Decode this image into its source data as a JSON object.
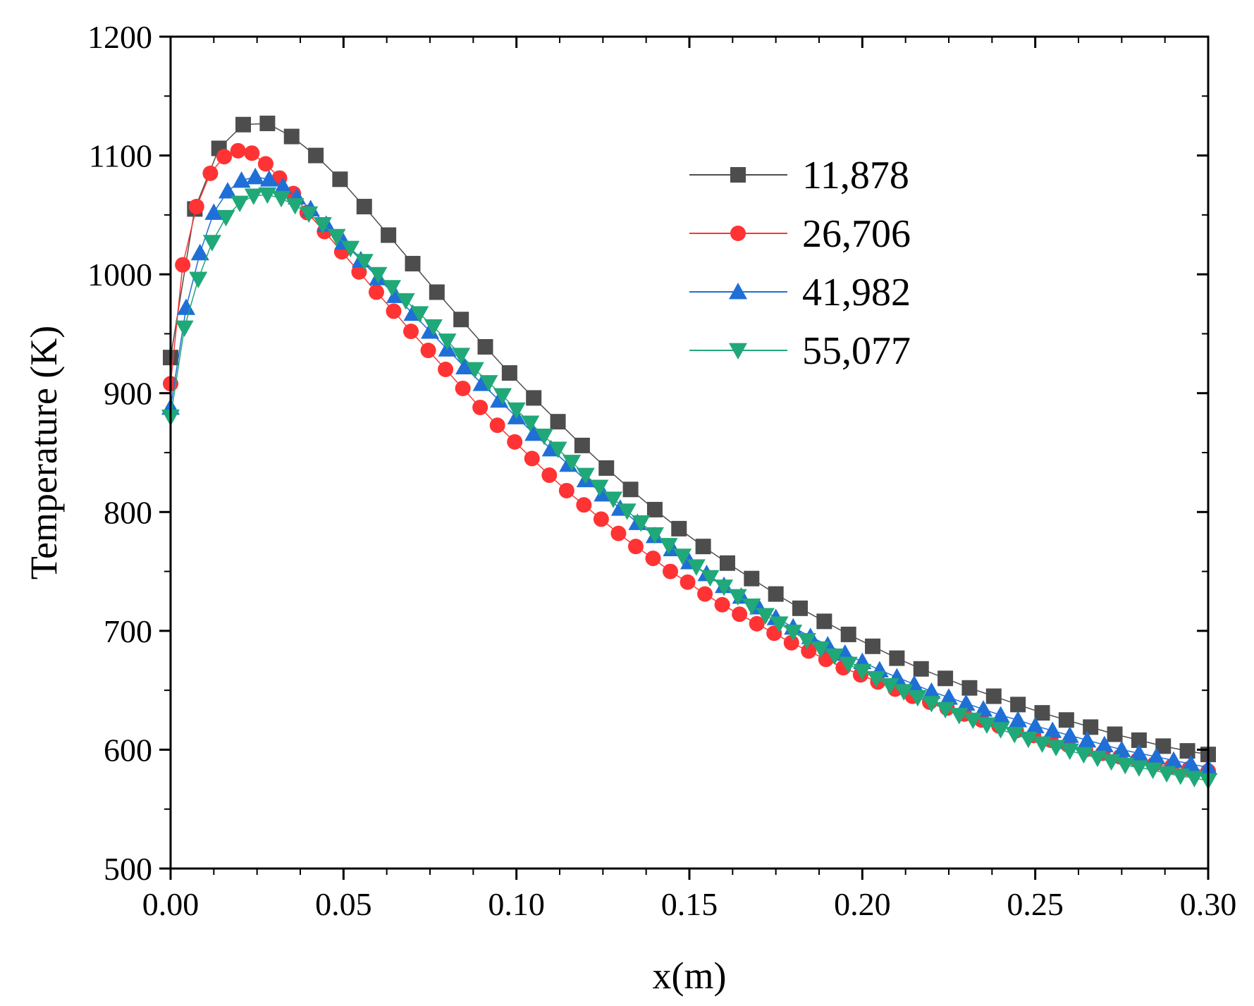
{
  "chart_data": {
    "type": "line",
    "title": "",
    "xlabel": "x(m)",
    "ylabel": "Temperature (K)",
    "xlim": [
      0.0,
      0.3
    ],
    "ylim": [
      500,
      1200
    ],
    "xticks": [
      0.0,
      0.05,
      0.1,
      0.15,
      0.2,
      0.25,
      0.3
    ],
    "xtick_labels": [
      "0.00",
      "0.05",
      "0.10",
      "0.15",
      "0.20",
      "0.25",
      "0.30"
    ],
    "yticks": [
      500,
      600,
      700,
      800,
      900,
      1000,
      1100,
      1200
    ],
    "ytick_labels": [
      "500",
      "600",
      "700",
      "800",
      "900",
      "1000",
      "1100",
      "1200"
    ],
    "grid": false,
    "legend_position": "top-right",
    "series": [
      {
        "name": "11,878",
        "color": "#4d4d4d",
        "marker": "square",
        "x": [
          0.0,
          0.007,
          0.014,
          0.021,
          0.028,
          0.035,
          0.042,
          0.049,
          0.056,
          0.063,
          0.07,
          0.077,
          0.084,
          0.091,
          0.098,
          0.105,
          0.112,
          0.119,
          0.126,
          0.133,
          0.14,
          0.147,
          0.154,
          0.161,
          0.168,
          0.175,
          0.182,
          0.189,
          0.196,
          0.203,
          0.21,
          0.217,
          0.224,
          0.231,
          0.238,
          0.245,
          0.252,
          0.259,
          0.266,
          0.273,
          0.28,
          0.287,
          0.294,
          0.3
        ],
        "y": [
          930,
          1055,
          1106,
          1126,
          1127,
          1116,
          1100,
          1080,
          1057,
          1033,
          1009,
          985,
          962,
          939,
          917,
          896,
          876,
          856,
          837,
          819,
          802,
          786,
          771,
          757,
          744,
          731,
          719,
          708,
          697,
          687,
          677,
          668,
          660,
          652,
          645,
          638,
          631,
          625,
          619,
          613,
          608,
          603,
          599,
          596
        ]
      },
      {
        "name": "26,706",
        "color": "#ff3333",
        "marker": "circle",
        "x": [
          0.0,
          0.0035,
          0.0075,
          0.0115,
          0.0155,
          0.0195,
          0.0235,
          0.0275,
          0.0315,
          0.0355,
          0.0395,
          0.0445,
          0.0495,
          0.0545,
          0.0595,
          0.0645,
          0.0695,
          0.0745,
          0.0795,
          0.0845,
          0.0895,
          0.0945,
          0.0995,
          0.1045,
          0.1095,
          0.1145,
          0.1195,
          0.1245,
          0.1295,
          0.1345,
          0.1395,
          0.1445,
          0.1495,
          0.1545,
          0.1595,
          0.1645,
          0.1695,
          0.1745,
          0.1795,
          0.1845,
          0.1895,
          0.1945,
          0.1995,
          0.2045,
          0.2095,
          0.2145,
          0.2195,
          0.2245,
          0.2295,
          0.2345,
          0.2395,
          0.2445,
          0.2495,
          0.2545,
          0.2595,
          0.2645,
          0.2695,
          0.2745,
          0.2795,
          0.2845,
          0.2895,
          0.2945,
          0.3
        ],
        "y": [
          908,
          1008,
          1057,
          1085,
          1099,
          1104,
          1102,
          1093,
          1081,
          1068,
          1052,
          1036,
          1019,
          1002,
          985,
          969,
          952,
          936,
          920,
          904,
          888,
          873,
          859,
          845,
          831,
          818,
          806,
          794,
          782,
          771,
          761,
          750,
          741,
          731,
          722,
          714,
          706,
          698,
          690,
          683,
          676,
          669,
          663,
          657,
          651,
          645,
          640,
          635,
          630,
          625,
          620,
          616,
          612,
          608,
          604,
          600,
          597,
          594,
          591,
          588,
          586,
          584,
          582
        ]
      },
      {
        "name": "41,982",
        "color": "#1f6fd6",
        "marker": "triangle-up",
        "x": [
          0.0,
          0.0045,
          0.0085,
          0.0125,
          0.0165,
          0.0205,
          0.0245,
          0.0285,
          0.0325,
          0.0365,
          0.0405,
          0.045,
          0.05,
          0.055,
          0.06,
          0.065,
          0.07,
          0.075,
          0.08,
          0.085,
          0.09,
          0.095,
          0.1,
          0.105,
          0.11,
          0.115,
          0.12,
          0.125,
          0.13,
          0.135,
          0.14,
          0.145,
          0.15,
          0.155,
          0.16,
          0.165,
          0.17,
          0.175,
          0.18,
          0.185,
          0.19,
          0.195,
          0.2,
          0.205,
          0.21,
          0.215,
          0.22,
          0.225,
          0.23,
          0.235,
          0.24,
          0.245,
          0.25,
          0.255,
          0.26,
          0.265,
          0.27,
          0.275,
          0.28,
          0.285,
          0.29,
          0.295,
          0.3
        ],
        "y": [
          888,
          972,
          1018,
          1052,
          1070,
          1079,
          1082,
          1080,
          1074,
          1065,
          1055,
          1042,
          1027,
          1012,
          997,
          982,
          967,
          952,
          937,
          922,
          908,
          894,
          880,
          866,
          853,
          840,
          827,
          815,
          803,
          791,
          780,
          769,
          758,
          748,
          738,
          729,
          720,
          711,
          703,
          695,
          688,
          681,
          674,
          667,
          661,
          655,
          649,
          644,
          639,
          634,
          629,
          625,
          620,
          616,
          612,
          608,
          604,
          600,
          597,
          594,
          591,
          588,
          585
        ]
      },
      {
        "name": "55,077",
        "color": "#20a878",
        "marker": "triangle-down",
        "x": [
          0.0,
          0.004,
          0.008,
          0.012,
          0.016,
          0.02,
          0.024,
          0.028,
          0.032,
          0.036,
          0.04,
          0.044,
          0.048,
          0.052,
          0.056,
          0.06,
          0.064,
          0.068,
          0.072,
          0.076,
          0.08,
          0.084,
          0.088,
          0.092,
          0.096,
          0.1,
          0.104,
          0.108,
          0.112,
          0.116,
          0.12,
          0.124,
          0.128,
          0.132,
          0.136,
          0.14,
          0.144,
          0.148,
          0.152,
          0.156,
          0.16,
          0.164,
          0.168,
          0.172,
          0.176,
          0.18,
          0.184,
          0.188,
          0.192,
          0.196,
          0.2,
          0.204,
          0.208,
          0.212,
          0.216,
          0.22,
          0.224,
          0.228,
          0.232,
          0.236,
          0.24,
          0.244,
          0.248,
          0.252,
          0.256,
          0.26,
          0.264,
          0.268,
          0.272,
          0.276,
          0.28,
          0.284,
          0.288,
          0.292,
          0.296,
          0.3
        ],
        "y": [
          880,
          955,
          996,
          1027,
          1048,
          1060,
          1066,
          1067,
          1064,
          1058,
          1051,
          1042,
          1032,
          1022,
          1011,
          1000,
          989,
          978,
          967,
          956,
          944,
          932,
          920,
          909,
          898,
          886,
          875,
          864,
          853,
          842,
          831,
          821,
          811,
          801,
          791,
          781,
          772,
          763,
          754,
          745,
          737,
          729,
          721,
          713,
          706,
          699,
          692,
          685,
          679,
          672,
          666,
          660,
          654,
          649,
          644,
          639,
          634,
          629,
          625,
          621,
          617,
          613,
          609,
          605,
          602,
          599,
          596,
          593,
          590,
          587,
          585,
          583,
          580,
          578,
          576,
          574
        ]
      }
    ]
  }
}
